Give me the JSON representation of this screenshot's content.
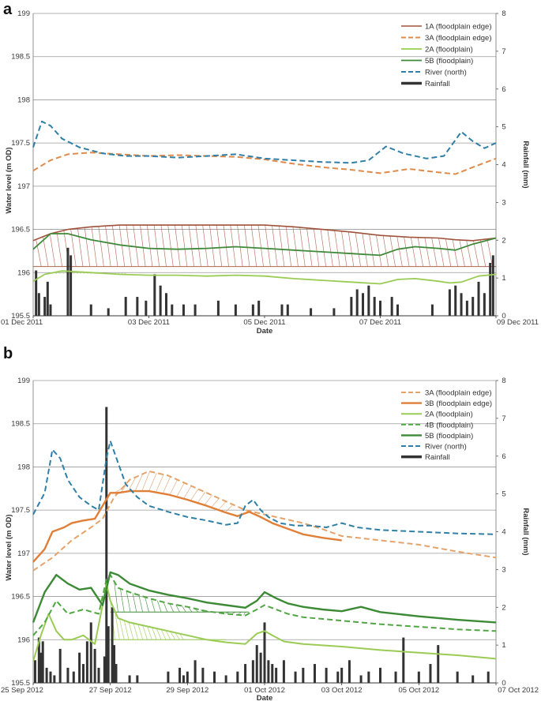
{
  "chart_data": [
    {
      "type": "line",
      "panel_label": "a",
      "xlabel": "Date",
      "ylabel": "Water level (m OD)",
      "ylabel_right": "Rainfall (mm)",
      "ylim": [
        195.5,
        199
      ],
      "ylim_right": [
        0,
        8
      ],
      "y_ticks": [
        "195.5",
        "196",
        "196.5",
        "197",
        "197.5",
        "198",
        "198.5",
        "199"
      ],
      "y_ticks_right": [
        "0",
        "1",
        "2",
        "3",
        "4",
        "5",
        "6",
        "7",
        "8"
      ],
      "x_range": [
        0,
        8
      ],
      "x_ticks": [
        {
          "x": 0,
          "label": "01 Dec 2011"
        },
        {
          "x": 2,
          "label": "03 Dec 2011"
        },
        {
          "x": 4,
          "label": "05 Dec 2011"
        },
        {
          "x": 6,
          "label": "07 Dec 2011"
        },
        {
          "x": 8,
          "label": "09 Dec 2011"
        }
      ],
      "series": [
        {
          "name": "1A (floodplain edge)",
          "color": "#a0523a",
          "dash": false,
          "width": 1.6,
          "x": [
            0,
            0.3,
            0.6,
            1.0,
            1.5,
            2.0,
            2.5,
            3.0,
            3.5,
            4.0,
            4.5,
            5.0,
            5.5,
            6.0,
            6.5,
            7.0,
            7.3,
            7.6,
            8.0
          ],
          "y": [
            196.37,
            196.45,
            196.5,
            196.53,
            196.55,
            196.55,
            196.55,
            196.55,
            196.55,
            196.55,
            196.53,
            196.5,
            196.47,
            196.43,
            196.41,
            196.4,
            196.38,
            196.37,
            196.4
          ]
        },
        {
          "name": "3A (floodplain edge)",
          "color": "#e08a4a",
          "dash": true,
          "width": 2,
          "x": [
            0,
            0.3,
            0.6,
            1.0,
            1.5,
            2.0,
            2.5,
            3.0,
            3.5,
            4.0,
            4.5,
            5.0,
            5.5,
            6.0,
            6.5,
            7.0,
            7.3,
            7.6,
            8.0
          ],
          "y": [
            197.18,
            197.3,
            197.37,
            197.39,
            197.37,
            197.35,
            197.36,
            197.35,
            197.34,
            197.31,
            197.26,
            197.22,
            197.19,
            197.15,
            197.2,
            197.16,
            197.14,
            197.22,
            197.32
          ]
        },
        {
          "name": "2A (floodplain)",
          "color": "#9acc55",
          "dash": false,
          "width": 1.8,
          "x": [
            0,
            0.2,
            0.5,
            1.0,
            1.5,
            2.0,
            2.5,
            3.0,
            3.5,
            4.0,
            4.5,
            5.0,
            5.5,
            6.0,
            6.3,
            6.6,
            7.0,
            7.2,
            7.4,
            7.7,
            8.0
          ],
          "y": [
            195.9,
            195.98,
            196.02,
            196.0,
            195.98,
            195.97,
            195.97,
            195.96,
            195.97,
            195.96,
            195.93,
            195.91,
            195.89,
            195.87,
            195.92,
            195.93,
            195.9,
            195.88,
            195.89,
            195.96,
            195.98
          ]
        },
        {
          "name": "5B (floodplain)",
          "color": "#3f8a3a",
          "dash": false,
          "width": 1.8,
          "x": [
            0,
            0.3,
            0.6,
            1.0,
            1.5,
            2.0,
            2.5,
            3.0,
            3.5,
            4.0,
            4.5,
            5.0,
            5.5,
            6.0,
            6.3,
            6.6,
            7.0,
            7.3,
            7.6,
            8.0
          ],
          "y": [
            196.27,
            196.45,
            196.45,
            196.38,
            196.32,
            196.28,
            196.27,
            196.28,
            196.3,
            196.28,
            196.26,
            196.24,
            196.22,
            196.2,
            196.27,
            196.3,
            196.28,
            196.26,
            196.33,
            196.4
          ]
        },
        {
          "name": "River (north)",
          "color": "#2f7fa6",
          "dash": true,
          "width": 2,
          "x": [
            0,
            0.15,
            0.3,
            0.5,
            0.8,
            1.2,
            1.6,
            2.0,
            2.5,
            3.0,
            3.5,
            4.0,
            4.5,
            5.0,
            5.5,
            5.8,
            6.1,
            6.4,
            6.8,
            7.1,
            7.4,
            7.6,
            7.8,
            8.0
          ],
          "y": [
            197.45,
            197.75,
            197.7,
            197.55,
            197.45,
            197.38,
            197.35,
            197.35,
            197.33,
            197.35,
            197.37,
            197.32,
            197.3,
            197.28,
            197.27,
            197.3,
            197.46,
            197.38,
            197.32,
            197.35,
            197.63,
            197.52,
            197.44,
            197.5
          ]
        }
      ],
      "rainfall": {
        "name": "Rainfall",
        "color": "#333333",
        "x": [
          0.05,
          0.1,
          0.2,
          0.25,
          0.3,
          0.6,
          0.65,
          1.0,
          1.3,
          1.6,
          1.8,
          1.95,
          2.1,
          2.2,
          2.3,
          2.4,
          2.6,
          2.8,
          3.2,
          3.5,
          3.8,
          3.9,
          4.3,
          4.4,
          4.8,
          5.2,
          5.5,
          5.6,
          5.7,
          5.8,
          5.9,
          6.0,
          6.2,
          6.3,
          6.9,
          7.2,
          7.3,
          7.4,
          7.5,
          7.6,
          7.7,
          7.8,
          7.9,
          7.95
        ],
        "values": [
          1.2,
          0.6,
          0.5,
          0.9,
          0.3,
          1.8,
          1.6,
          0.3,
          0.2,
          0.5,
          0.5,
          0.4,
          1.1,
          0.8,
          0.6,
          0.3,
          0.3,
          0.3,
          0.4,
          0.3,
          0.3,
          0.4,
          0.3,
          0.3,
          0.2,
          0.2,
          0.5,
          0.7,
          0.6,
          0.8,
          0.5,
          0.4,
          0.5,
          0.3,
          0.3,
          0.7,
          0.8,
          0.6,
          0.4,
          0.5,
          0.9,
          0.6,
          1.4,
          1.6
        ]
      },
      "legend": [
        "1A (floodplain edge)",
        "3A (floodplain edge)",
        "2A (floodplain)",
        "5B (floodplain)",
        "River (north)",
        "Rainfall"
      ],
      "legend_position": "top-right"
    },
    {
      "type": "line",
      "panel_label": "b",
      "xlabel": "Date",
      "ylabel": "Water level (m OD)",
      "ylabel_right": "Rainfall (mm)",
      "ylim": [
        195.5,
        199
      ],
      "ylim_right": [
        0,
        8
      ],
      "y_ticks": [
        "195.5",
        "196",
        "196.5",
        "197",
        "197.5",
        "198",
        "198.5",
        "199"
      ],
      "y_ticks_right": [
        "0",
        "1",
        "2",
        "3",
        "4",
        "5",
        "6",
        "7",
        "8"
      ],
      "x_range": [
        0,
        12
      ],
      "x_ticks": [
        {
          "x": 0,
          "label": "25 Sep 2012"
        },
        {
          "x": 2,
          "label": "27 Sep 2012"
        },
        {
          "x": 4,
          "label": "29 Sep 2012"
        },
        {
          "x": 6,
          "label": "01 Oct 2012"
        },
        {
          "x": 8,
          "label": "03 Oct 2012"
        },
        {
          "x": 10,
          "label": "05 Oct 2012"
        },
        {
          "x": 12,
          "label": "07 Oct 2012"
        }
      ],
      "series": [
        {
          "name": "3A (floodplain edge)",
          "color": "#e5a36a",
          "dash": true,
          "width": 2,
          "x": [
            0,
            0.5,
            1.0,
            1.5,
            1.8,
            2.1,
            2.5,
            3.0,
            3.5,
            4.0,
            4.5,
            5.0,
            5.5,
            6.0,
            6.5,
            7.0,
            7.5,
            8.0,
            9.0,
            10.0,
            11.0,
            12.0
          ],
          "y": [
            196.8,
            196.95,
            197.15,
            197.3,
            197.4,
            197.65,
            197.85,
            197.95,
            197.9,
            197.8,
            197.7,
            197.6,
            197.5,
            197.45,
            197.4,
            197.35,
            197.28,
            197.2,
            197.15,
            197.1,
            197.02,
            196.95
          ]
        },
        {
          "name": "3B (floodplain edge)",
          "color": "#e07f38",
          "dash": false,
          "width": 2.4,
          "x": [
            0,
            0.3,
            0.5,
            0.8,
            1.0,
            1.3,
            1.6,
            1.8,
            2.0,
            2.2,
            2.5,
            3.0,
            3.5,
            4.0,
            4.5,
            5.0,
            5.3,
            5.6,
            5.9,
            6.2,
            6.5,
            7.0,
            7.5,
            8.0
          ],
          "y": [
            196.9,
            197.05,
            197.25,
            197.3,
            197.35,
            197.38,
            197.4,
            197.55,
            197.7,
            197.7,
            197.72,
            197.72,
            197.68,
            197.62,
            197.55,
            197.47,
            197.43,
            197.48,
            197.42,
            197.35,
            197.3,
            197.22,
            197.18,
            197.15
          ]
        },
        {
          "name": "2A (floodplain)",
          "color": "#9acc55",
          "dash": false,
          "width": 2,
          "x": [
            0,
            0.2,
            0.4,
            0.6,
            0.8,
            1.0,
            1.3,
            1.6,
            1.8,
            1.9,
            2.0,
            2.2,
            2.5,
            3.0,
            3.5,
            4.0,
            4.5,
            5.0,
            5.5,
            5.8,
            6.0,
            6.2,
            6.5,
            7.0,
            8.0,
            9.0,
            10.0,
            11.0,
            12.0
          ],
          "y": [
            195.75,
            196.05,
            196.3,
            196.1,
            196.0,
            196.0,
            196.05,
            195.95,
            196.4,
            196.65,
            196.45,
            196.25,
            196.2,
            196.15,
            196.1,
            196.05,
            196.0,
            195.97,
            195.95,
            196.07,
            196.1,
            196.05,
            195.98,
            195.95,
            195.92,
            195.88,
            195.85,
            195.82,
            195.78
          ]
        },
        {
          "name": "4B (floodplain)",
          "color": "#4fa642",
          "dash": true,
          "width": 2,
          "x": [
            0,
            0.3,
            0.6,
            0.9,
            1.3,
            1.7,
            1.9,
            2.0,
            2.2,
            2.5,
            3.0,
            3.5,
            4.0,
            4.5,
            5.0,
            5.5,
            5.8,
            6.0,
            6.3,
            6.6,
            7.0,
            8.0,
            9.0,
            10.0,
            11.0,
            12.0
          ],
          "y": [
            196.05,
            196.2,
            196.45,
            196.3,
            196.35,
            196.3,
            196.7,
            196.75,
            196.6,
            196.55,
            196.48,
            196.42,
            196.38,
            196.33,
            196.3,
            196.28,
            196.35,
            196.4,
            196.35,
            196.3,
            196.26,
            196.22,
            196.18,
            196.15,
            196.12,
            196.1
          ]
        },
        {
          "name": "5B (floodplain)",
          "color": "#3c8a35",
          "dash": false,
          "width": 2.4,
          "x": [
            0,
            0.3,
            0.6,
            0.9,
            1.2,
            1.5,
            1.8,
            2.0,
            2.2,
            2.5,
            3.0,
            3.5,
            4.0,
            4.5,
            5.0,
            5.5,
            5.8,
            6.0,
            6.3,
            6.6,
            7.0,
            7.5,
            8.0,
            8.5,
            9.0,
            10.0,
            11.0,
            12.0
          ],
          "y": [
            196.2,
            196.55,
            196.75,
            196.65,
            196.58,
            196.6,
            196.4,
            196.78,
            196.75,
            196.65,
            196.57,
            196.52,
            196.48,
            196.43,
            196.4,
            196.37,
            196.45,
            196.55,
            196.48,
            196.42,
            196.38,
            196.35,
            196.33,
            196.38,
            196.32,
            196.27,
            196.23,
            196.2
          ]
        },
        {
          "name": "River (north)",
          "color": "#2f7fa6",
          "dash": true,
          "width": 2,
          "x": [
            0,
            0.3,
            0.5,
            0.7,
            0.9,
            1.2,
            1.5,
            1.7,
            1.9,
            2.0,
            2.2,
            2.4,
            2.7,
            3.0,
            3.5,
            4.0,
            4.5,
            5.0,
            5.3,
            5.5,
            5.7,
            5.9,
            6.1,
            6.4,
            6.8,
            7.2,
            7.6,
            8.0,
            8.4,
            9.0,
            10.0,
            11.0,
            12.0
          ],
          "y": [
            197.45,
            197.7,
            198.2,
            198.1,
            197.85,
            197.65,
            197.55,
            197.5,
            198.1,
            198.3,
            198.05,
            197.8,
            197.65,
            197.55,
            197.48,
            197.42,
            197.38,
            197.33,
            197.35,
            197.55,
            197.62,
            197.5,
            197.42,
            197.35,
            197.32,
            197.32,
            197.3,
            197.35,
            197.3,
            197.27,
            197.25,
            197.23,
            197.22
          ]
        }
      ],
      "rainfall": {
        "name": "Rainfall",
        "color": "#333333",
        "x": [
          0.05,
          0.15,
          0.2,
          0.25,
          0.35,
          0.45,
          0.55,
          0.7,
          0.9,
          1.05,
          1.2,
          1.3,
          1.4,
          1.5,
          1.6,
          1.7,
          1.85,
          1.9,
          1.95,
          2.05,
          2.1,
          2.15,
          2.5,
          2.7,
          3.5,
          3.8,
          3.9,
          4.0,
          4.2,
          4.4,
          4.7,
          5.0,
          5.3,
          5.5,
          5.7,
          5.8,
          5.9,
          6.0,
          6.1,
          6.2,
          6.3,
          6.5,
          6.8,
          7.0,
          7.3,
          7.6,
          7.9,
          8.0,
          8.2,
          8.5,
          8.7,
          9.0,
          9.4,
          9.6,
          10.0,
          10.3,
          10.5,
          11.0,
          11.4,
          11.8
        ],
        "values": [
          0.6,
          1.2,
          0.8,
          1.1,
          0.4,
          0.3,
          0.2,
          0.9,
          0.4,
          0.3,
          0.8,
          0.5,
          1.1,
          1.6,
          0.9,
          0.4,
          0.7,
          7.3,
          1.5,
          2.0,
          1.0,
          0.5,
          0.2,
          0.2,
          0.3,
          0.4,
          0.2,
          0.3,
          0.6,
          0.4,
          0.3,
          0.2,
          0.3,
          0.5,
          0.6,
          1.0,
          0.8,
          1.6,
          0.6,
          0.5,
          0.4,
          0.6,
          0.3,
          0.4,
          0.5,
          0.4,
          0.3,
          0.4,
          0.6,
          0.2,
          0.3,
          0.4,
          0.3,
          1.2,
          0.3,
          0.5,
          1.0,
          0.3,
          0.2,
          0.3
        ]
      },
      "legend": [
        "3A (floodplain edge)",
        "3B (floodplain edge)",
        "2A (floodplain)",
        "4B (floodplain)",
        "5B (floodplain)",
        "River (north)",
        "Rainfall"
      ],
      "legend_position": "top-right"
    }
  ]
}
